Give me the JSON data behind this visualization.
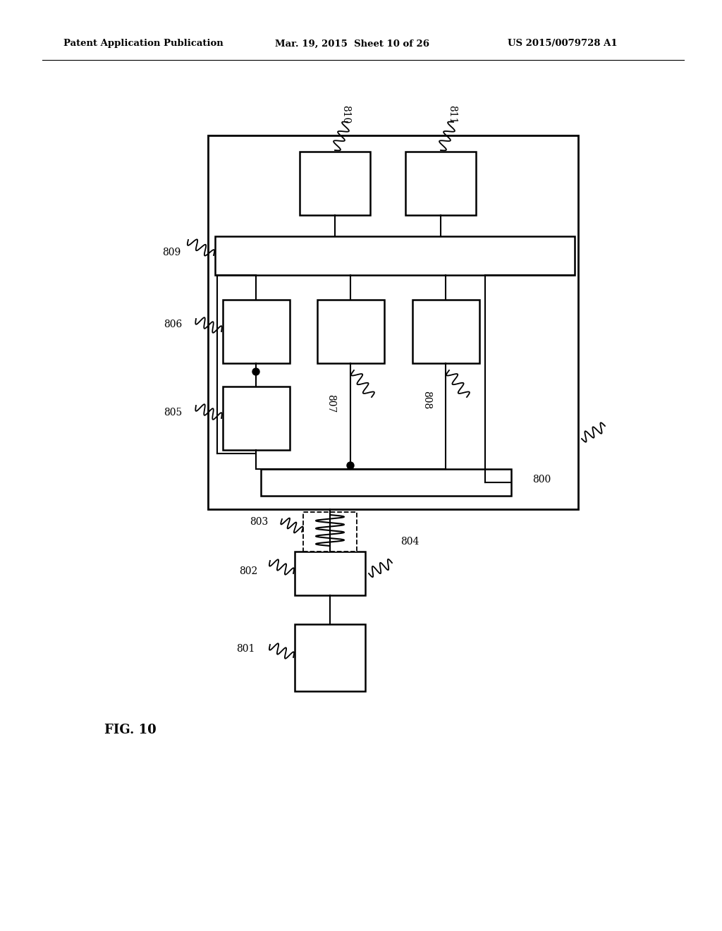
{
  "header_left": "Patent Application Publication",
  "header_mid": "Mar. 19, 2015  Sheet 10 of 26",
  "header_right": "US 2015/0079728 A1",
  "figure_label": "FIG. 10",
  "bg_color": "#ffffff",
  "line_color": "#000000"
}
